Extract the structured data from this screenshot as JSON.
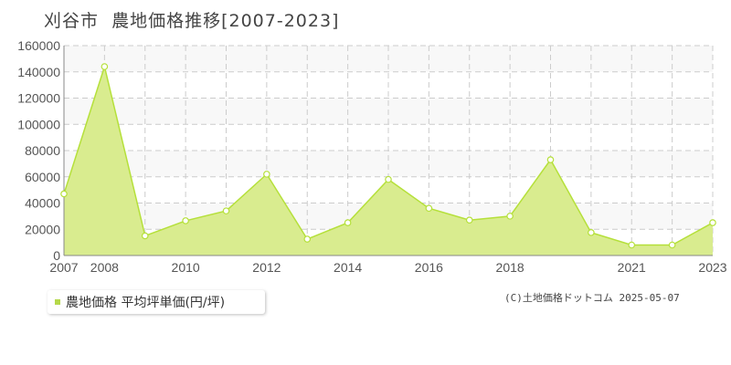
{
  "title": "刈谷市  農地価格推移[2007-2023]",
  "legend": {
    "label": "農地価格 平均坪単価(円/坪)",
    "color": "#b5d94a"
  },
  "copyright": "(C)土地価格ドットコム 2025-05-07",
  "colors": {
    "area_fill": "#d9ec8f",
    "line": "#b5e03a",
    "band": "#f8f8f8",
    "grid": "#cccccc"
  },
  "chart_data": {
    "type": "area",
    "x": [
      2007,
      2008,
      2009,
      2010,
      2011,
      2012,
      2013,
      2014,
      2015,
      2016,
      2017,
      2018,
      2019,
      2020,
      2021,
      2022,
      2023
    ],
    "series": [
      {
        "name": "農地価格 平均坪単価(円/坪)",
        "values": [
          47000,
          144000,
          15000,
          26500,
          34000,
          62000,
          12500,
          25000,
          58000,
          36000,
          27000,
          30000,
          73000,
          17500,
          8000,
          8000,
          25000
        ]
      }
    ],
    "xlim": [
      2007,
      2023
    ],
    "ylim": [
      0,
      160000
    ],
    "yticks": [
      0,
      20000,
      40000,
      60000,
      80000,
      100000,
      120000,
      140000,
      160000
    ],
    "xtick_labels": [
      2007,
      2008,
      2010,
      2012,
      2014,
      2016,
      2018,
      2021,
      2023
    ],
    "grid": true,
    "legend_position": "bottom-left"
  }
}
